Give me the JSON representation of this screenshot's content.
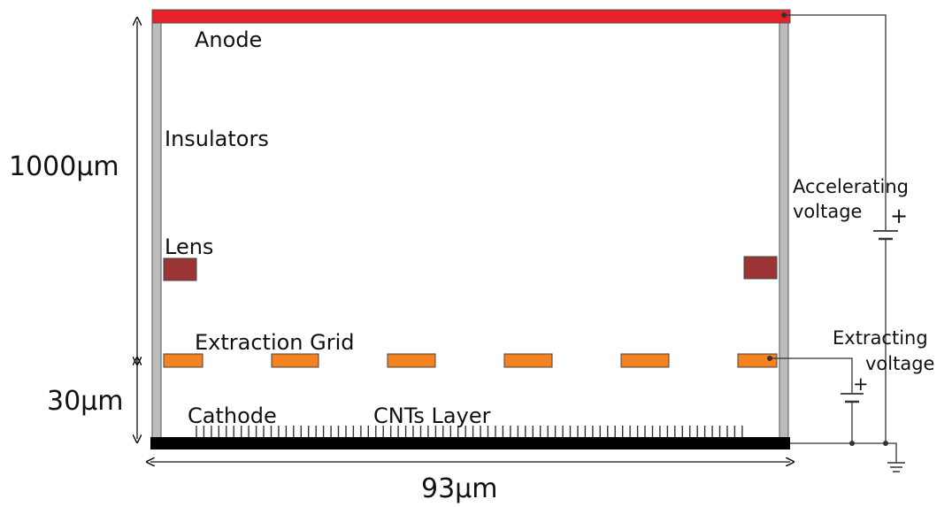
{
  "labels": {
    "anode": "Anode",
    "insulators": "Insulators",
    "lens": "Lens",
    "extraction_grid": "Extraction Grid",
    "cathode": "Cathode",
    "cnts_layer": "CNTs Layer",
    "accelerating_voltage_line1": "Accelerating",
    "accelerating_voltage_line2": "voltage",
    "extracting_voltage_line1": "Extracting",
    "extracting_voltage_line2": "voltage",
    "plus_sign": "+"
  },
  "dimensions": {
    "height_total": "1000μm",
    "height_gap": "30μm",
    "width": "93μm"
  },
  "colors": {
    "anode": "#e8202a",
    "insulator": "#bdbdbd",
    "lens": "#9b3535",
    "grid": "#f58220",
    "cathode": "#000000",
    "wire": "#333333"
  },
  "icons": {
    "ground": "ground-symbol-icon",
    "battery": "battery-symbol-icon"
  }
}
